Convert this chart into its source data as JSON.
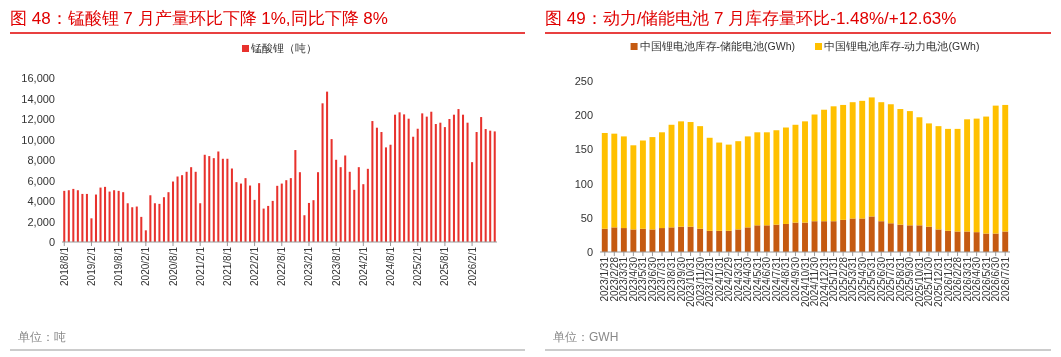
{
  "chart_data": [
    {
      "type": "bar",
      "title": "图 48：锰酸锂 7 月产量环比下降 1%,同比下降 8%",
      "legend": "top",
      "annotations": [
        "单位：吨"
      ],
      "categories": [
        "2018/8/1",
        null,
        null,
        null,
        null,
        null,
        "2019/2/1",
        null,
        null,
        null,
        null,
        null,
        "2019/8/1",
        null,
        null,
        null,
        null,
        null,
        "2020/2/1",
        null,
        null,
        null,
        null,
        null,
        "2020/8/1",
        null,
        null,
        null,
        null,
        null,
        "2021/2/1",
        null,
        null,
        null,
        null,
        null,
        "2021/8/1",
        null,
        null,
        null,
        null,
        null,
        "2022/2/1",
        null,
        null,
        null,
        null,
        null,
        "2022/8/1",
        null,
        null,
        null,
        null,
        null,
        "2023/2/1",
        null,
        null,
        null,
        null,
        null,
        "2023/8/1",
        null,
        null,
        null,
        null,
        null,
        "2024/2/1",
        null,
        null,
        null,
        null,
        null,
        "2024/8/1",
        null,
        null,
        null,
        null,
        null,
        "2025/2/1",
        null,
        null,
        null,
        null,
        null,
        "2025/8/1",
        null,
        null,
        null,
        null,
        null,
        "2026/2/1",
        null,
        null,
        null,
        null,
        null
      ],
      "ylim": [
        0,
        16000
      ],
      "yticks": [
        0,
        {
          "value": 2000,
          "label": "2,000"
        },
        {
          "value": 4000,
          "label": "4,000"
        },
        {
          "value": 6000,
          "label": "6,000"
        },
        {
          "value": 8000,
          "label": "8,000"
        },
        {
          "value": 10000,
          "label": "10,000"
        },
        {
          "value": 12000,
          "label": "12,000"
        },
        {
          "value": 14000,
          "label": "14,000"
        },
        {
          "value": 16000,
          "label": "16,000"
        }
      ],
      "series": [
        {
          "name": "锰酸锂（吨）",
          "color": "#e8322d",
          "values": [
            4990,
            5050,
            5180,
            5050,
            4690,
            4690,
            2310,
            4630,
            5310,
            5380,
            4920,
            5050,
            4990,
            4860,
            3780,
            3390,
            3460,
            2450,
            1140,
            4560,
            3780,
            3720,
            4370,
            4860,
            5900,
            6390,
            6520,
            6850,
            7300,
            6850,
            3780,
            8510,
            8380,
            8180,
            8830,
            8120,
            8120,
            7170,
            5840,
            5700,
            6230,
            5510,
            4110,
            5740,
            3260,
            3520,
            4010,
            5480,
            5700,
            6030,
            6230,
            8970,
            6810,
            2610,
            3810,
            4080,
            6810,
            13530,
            14670,
            10040,
            8020,
            7300,
            8440,
            6850,
            5090,
            7300,
            5640,
            7140,
            11800,
            11150,
            10730,
            9230,
            9490,
            12420,
            12650,
            12450,
            12030,
            10270,
            11050,
            12550,
            12230,
            12710,
            11510,
            11640,
            11210,
            12000,
            12420,
            12970,
            12420,
            11640,
            7790,
            10730,
            12190,
            11020,
            10860,
            10790
          ]
        }
      ]
    },
    {
      "type": "bar",
      "title": "图 49：动力/储能电池 7 月库存量环比-1.48%/+12.63%",
      "legend": "top",
      "stacked": true,
      "annotations": [
        "单位：GWH"
      ],
      "categories": [
        "2023/1/31",
        "2023/2/28",
        "2023/3/31",
        "2023/4/30",
        "2023/5/31",
        "2023/6/30",
        "2023/7/31",
        "2023/8/31",
        "2023/9/30",
        "2023/10/31",
        "2023/11/30",
        "2023/12/31",
        "2024/1/31",
        "2024/2/29",
        "2024/3/31",
        "2024/4/30",
        "2024/5/31",
        "2024/6/30",
        "2024/7/31",
        "2024/8/31",
        "2024/9/30",
        "2024/10/31",
        "2024/11/30",
        "2024/12/31",
        "2025/1/31",
        "2025/2/28",
        "2025/3/31",
        "2025/4/30",
        "2025/5/31",
        "2025/6/30",
        "2025/7/31",
        "2025/8/31",
        "2025/9/30",
        "2025/10/31",
        "2025/11/30",
        "2025/12/31",
        "2026/1/31",
        "2026/2/28",
        "2026/3/31",
        "2026/4/30",
        "2026/5/31",
        "2026/6/30",
        "2026/7/31"
      ],
      "ylim": [
        0,
        250
      ],
      "yticks": [
        0,
        50,
        100,
        150,
        200,
        250
      ],
      "series": [
        {
          "name": "中国锂电池库存-储能电池(GWh)",
          "color": "#c55a11",
          "values": [
            34,
            36,
            35,
            33,
            34,
            33,
            35,
            36,
            37,
            37,
            34,
            31,
            31,
            31,
            33,
            36,
            39,
            39,
            40,
            41,
            43,
            43,
            45,
            45,
            45,
            47,
            49,
            49,
            52,
            45,
            42,
            40,
            39,
            39,
            37,
            33,
            31,
            30,
            30,
            29,
            27,
            27,
            30
          ]
        },
        {
          "name": "中国锂电池库存-动力电池(GWh)",
          "color": "#ffc000",
          "values": [
            140,
            137,
            134,
            123,
            129,
            135,
            140,
            150,
            154,
            153,
            150,
            136,
            129,
            126,
            129,
            133,
            136,
            136,
            138,
            141,
            143,
            148,
            156,
            163,
            168,
            168,
            170,
            172,
            174,
            174,
            174,
            169,
            167,
            158,
            151,
            151,
            149,
            150,
            164,
            166,
            171,
            187,
            185
          ]
        }
      ]
    }
  ]
}
